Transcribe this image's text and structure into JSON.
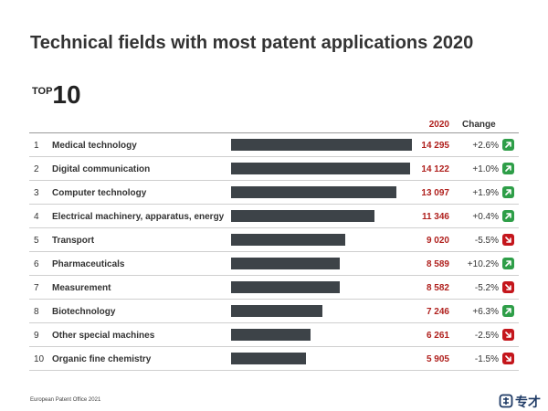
{
  "title": "Technical fields with most patent applications 2020",
  "top_label_small": "TOP",
  "top_label_large": "10",
  "header": {
    "year": "2020",
    "change": "Change"
  },
  "colors": {
    "bar": "#3d4348",
    "value": "#b0211e",
    "up": "#2e9e48",
    "down": "#c4161c"
  },
  "chart_data": {
    "type": "bar",
    "orientation": "horizontal",
    "categories": [
      "Medical technology",
      "Digital communication",
      "Computer technology",
      "Electrical machinery, apparatus, energy",
      "Transport",
      "Pharmaceuticals",
      "Measurement",
      "Biotechnology",
      "Other special machines",
      "Organic fine chemistry"
    ],
    "rows": [
      {
        "rank": "1",
        "name": "Medical technology",
        "value": 14295,
        "value_label": "14 295",
        "change": "+2.6%",
        "direction": "up"
      },
      {
        "rank": "2",
        "name": "Digital communication",
        "value": 14122,
        "value_label": "14 122",
        "change": "+1.0%",
        "direction": "up"
      },
      {
        "rank": "3",
        "name": "Computer technology",
        "value": 13097,
        "value_label": "13 097",
        "change": "+1.9%",
        "direction": "up"
      },
      {
        "rank": "4",
        "name": "Electrical machinery, apparatus, energy",
        "value": 11346,
        "value_label": "11 346",
        "change": "+0.4%",
        "direction": "up"
      },
      {
        "rank": "5",
        "name": "Transport",
        "value": 9020,
        "value_label": "9 020",
        "change": "-5.5%",
        "direction": "down"
      },
      {
        "rank": "6",
        "name": "Pharmaceuticals",
        "value": 8589,
        "value_label": "8 589",
        "change": "+10.2%",
        "direction": "up"
      },
      {
        "rank": "7",
        "name": "Measurement",
        "value": 8582,
        "value_label": "8 582",
        "change": "-5.2%",
        "direction": "down"
      },
      {
        "rank": "8",
        "name": "Biotechnology",
        "value": 7246,
        "value_label": "7 246",
        "change": "+6.3%",
        "direction": "up"
      },
      {
        "rank": "9",
        "name": "Other special machines",
        "value": 6261,
        "value_label": "6 261",
        "change": "-2.5%",
        "direction": "down"
      },
      {
        "rank": "10",
        "name": "Organic fine chemistry",
        "value": 5905,
        "value_label": "5 905",
        "change": "-1.5%",
        "direction": "down"
      }
    ]
  },
  "footer": "European Patent Office 2021",
  "logo_text": "专才"
}
